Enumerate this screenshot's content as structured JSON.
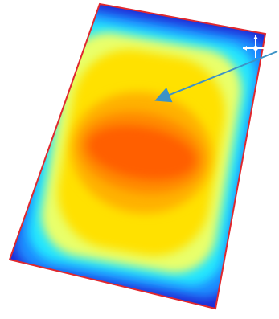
{
  "figure": {
    "type": "contour-heatmap",
    "colormap": [
      "#1f2ad6",
      "#1e8cff",
      "#22e6ff",
      "#e9ff6a",
      "#ffe100",
      "#ffb100",
      "#ff8a00",
      "#ff5f00"
    ],
    "border_color": "#e0282e",
    "arrow_color": "#3d93c6",
    "origin_triad_color": "#ffffff"
  }
}
